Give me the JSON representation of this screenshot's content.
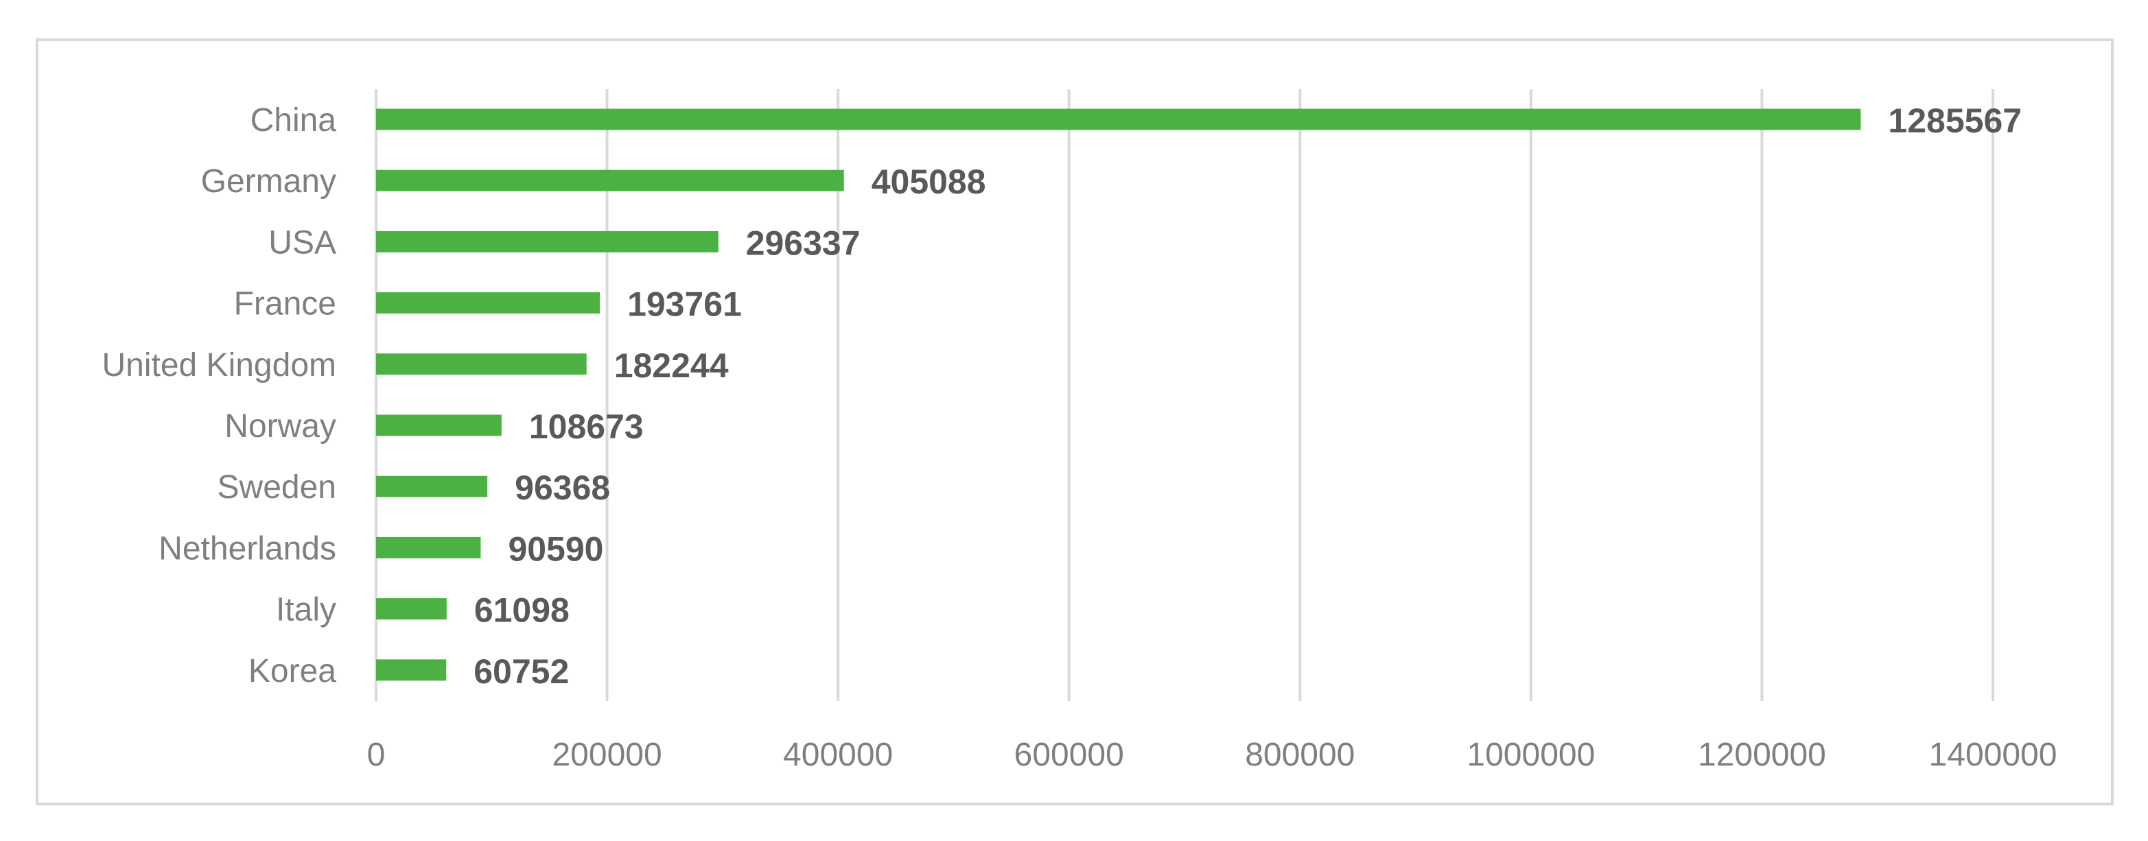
{
  "chart_data": {
    "type": "bar",
    "orientation": "horizontal",
    "categories": [
      "China",
      "Germany",
      "USA",
      "France",
      "United Kingdom",
      "Norway",
      "Sweden",
      "Netherlands",
      "Italy",
      "Korea"
    ],
    "values": [
      1285567,
      405088,
      296337,
      193761,
      182244,
      108673,
      96368,
      90590,
      61098,
      60752
    ],
    "xticks": [
      "0",
      "200000",
      "400000",
      "600000",
      "800000",
      "1000000",
      "1200000",
      "1400000"
    ],
    "xlim": [
      0,
      1400000
    ],
    "grid": "vertical",
    "legend": "none",
    "data_labels": true,
    "title": "",
    "xlabel": "",
    "ylabel": "",
    "colors": {
      "bar": "#4bb143",
      "grid": "#d9d9d9",
      "axis_text": "#7f7f7f",
      "value_text": "#595959"
    }
  }
}
